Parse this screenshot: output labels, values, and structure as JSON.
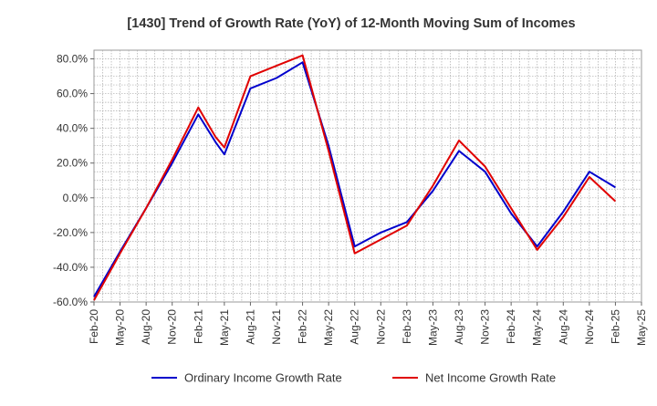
{
  "chart_data": {
    "type": "line",
    "title": "[1430]  Trend of Growth Rate (YoY) of 12-Month Moving Sum of Incomes",
    "xlabel": "",
    "ylabel": "",
    "ylim": [
      -60,
      85
    ],
    "yticks": [
      "80.0%",
      "60.0%",
      "40.0%",
      "20.0%",
      "0.0%",
      "-20.0%",
      "-40.0%",
      "-60.0%"
    ],
    "ytick_values": [
      80,
      60,
      40,
      20,
      0,
      -20,
      -40,
      -60
    ],
    "x_ticks": [
      "Feb-20",
      "May-20",
      "Aug-20",
      "Nov-20",
      "Feb-21",
      "May-21",
      "Aug-21",
      "Nov-21",
      "Feb-22",
      "May-22",
      "Aug-22",
      "Nov-22",
      "Feb-23",
      "May-23",
      "Aug-23",
      "Nov-23",
      "Feb-24",
      "May-24",
      "Aug-24",
      "Nov-24",
      "Feb-25",
      "May-25"
    ],
    "x": [
      "Feb-20",
      "May-20",
      "Aug-20",
      "Nov-20",
      "Feb-21",
      "Apr-21",
      "May-21",
      "Aug-21",
      "Nov-21",
      "Feb-22",
      "May-22",
      "Aug-22",
      "Nov-22",
      "Feb-23",
      "May-23",
      "Aug-23",
      "Nov-23",
      "Feb-24",
      "May-24",
      "Aug-24",
      "Nov-24",
      "Feb-25"
    ],
    "grid": true,
    "legend_position": "bottom",
    "series": [
      {
        "name": "Ordinary Income Growth Rate",
        "color": "#0000cc",
        "values": [
          -57,
          -31,
          -6,
          20,
          48,
          32,
          25,
          63,
          69,
          78,
          30,
          -28,
          -20,
          -14,
          4,
          27,
          15,
          -9,
          -28,
          -8,
          15,
          6
        ]
      },
      {
        "name": "Net Income Growth Rate",
        "color": "#e00000",
        "values": [
          -59,
          -32,
          -6,
          22,
          52,
          35,
          29,
          70,
          76,
          82,
          27,
          -32,
          -24,
          -16,
          7,
          33,
          18,
          -6,
          -30,
          -11,
          12,
          -2
        ]
      }
    ]
  }
}
